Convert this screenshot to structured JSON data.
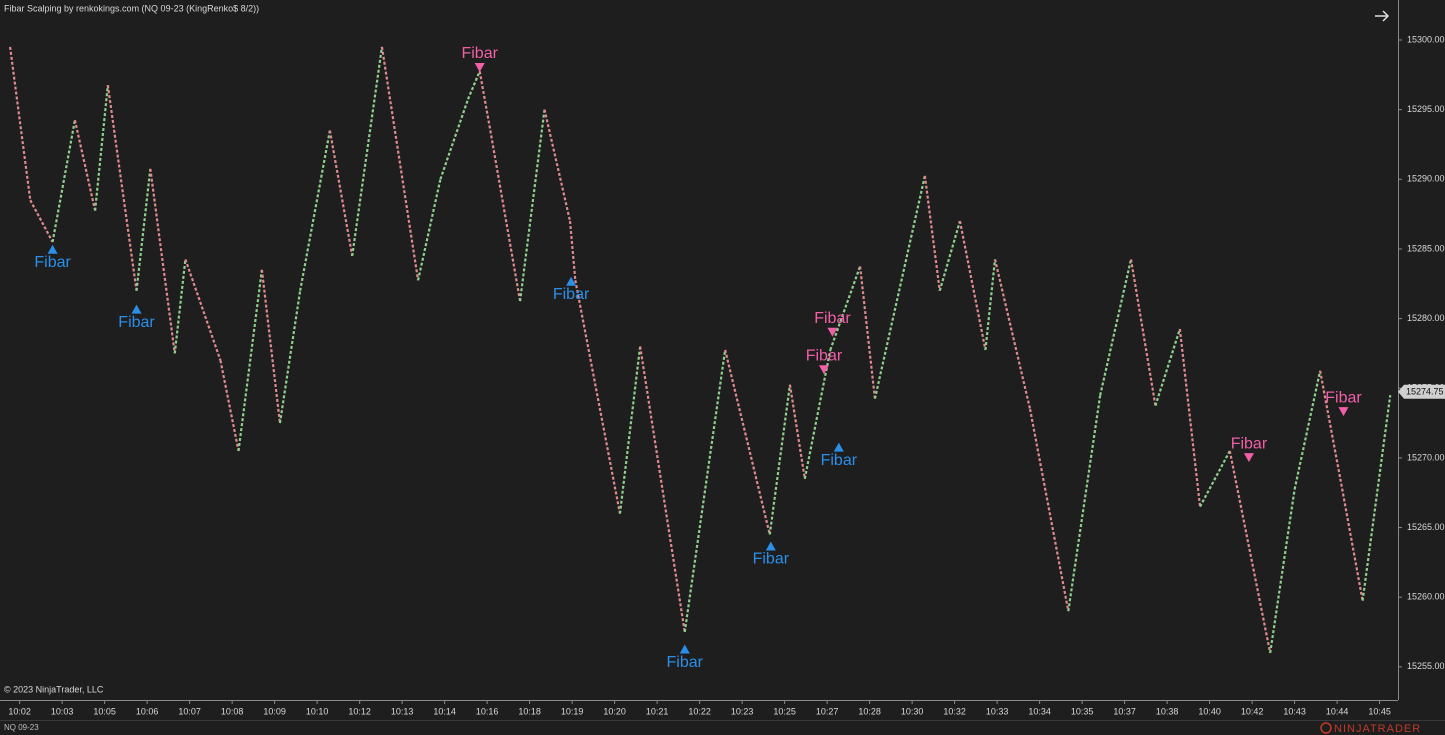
{
  "chart_data": {
    "type": "line",
    "title": "Fibar Scalping by renkokings.com (NQ 09-23 (KingRenko$ 8/2))",
    "copyright": "© 2023 NinjaTrader, LLC",
    "instrument": "NQ 09-23",
    "brand": "NINJATRADER",
    "last_price": 15274.75,
    "xlim": [
      -0.85,
      130.73
    ],
    "ylim": [
      15252.62,
      15302.87
    ],
    "up_color": "#8fcf8c",
    "down_color": "#e08a8f",
    "xticks": [
      {
        "value": 1,
        "label": "10:02"
      },
      {
        "value": 5,
        "label": "10:03"
      },
      {
        "value": 9,
        "label": "10:05"
      },
      {
        "value": 13,
        "label": "10:06"
      },
      {
        "value": 17,
        "label": "10:07"
      },
      {
        "value": 21,
        "label": "10:08"
      },
      {
        "value": 25,
        "label": "10:09"
      },
      {
        "value": 29,
        "label": "10:10"
      },
      {
        "value": 33,
        "label": "10:12"
      },
      {
        "value": 37,
        "label": "10:13"
      },
      {
        "value": 41,
        "label": "10:14"
      },
      {
        "value": 45,
        "label": "10:16"
      },
      {
        "value": 49,
        "label": "10:18"
      },
      {
        "value": 53,
        "label": "10:19"
      },
      {
        "value": 57,
        "label": "10:20"
      },
      {
        "value": 61,
        "label": "10:21"
      },
      {
        "value": 65,
        "label": "10:22"
      },
      {
        "value": 69,
        "label": "10:23"
      },
      {
        "value": 73,
        "label": "10:25"
      },
      {
        "value": 77,
        "label": "10:27"
      },
      {
        "value": 81,
        "label": "10:28"
      },
      {
        "value": 85,
        "label": "10:30"
      },
      {
        "value": 89,
        "label": "10:32"
      },
      {
        "value": 93,
        "label": "10:33"
      },
      {
        "value": 97,
        "label": "10:34"
      },
      {
        "value": 101,
        "label": "10:35"
      },
      {
        "value": 105,
        "label": "10:37"
      },
      {
        "value": 109,
        "label": "10:38"
      },
      {
        "value": 113,
        "label": "10:40"
      },
      {
        "value": 117,
        "label": "10:42"
      },
      {
        "value": 121,
        "label": "10:43"
      },
      {
        "value": 125,
        "label": "10:44"
      },
      {
        "value": 129,
        "label": "10:45"
      }
    ],
    "yticks": [
      {
        "value": 15255,
        "label": "15255.00"
      },
      {
        "value": 15260,
        "label": "15260.00"
      },
      {
        "value": 15265,
        "label": "15265.00"
      },
      {
        "value": 15270,
        "label": "15270.00"
      },
      {
        "value": 15275,
        "label": "15275.00"
      },
      {
        "value": 15280,
        "label": "15280.00"
      },
      {
        "value": 15285,
        "label": "15285.00"
      },
      {
        "value": 15290,
        "label": "15290.00"
      },
      {
        "value": 15295,
        "label": "15295.00"
      },
      {
        "value": 15300,
        "label": "15300.00"
      }
    ],
    "series": [
      {
        "name": "NQ 09-23",
        "x": [
          0.1,
          2.0,
          4.1,
          6.2,
          8.1,
          9.3,
          12.0,
          13.3,
          15.6,
          16.6,
          19.9,
          21.6,
          23.8,
          25.5,
          27.4,
          30.2,
          32.3,
          35.1,
          38.5,
          40.6,
          43.2,
          44.3,
          45.3,
          48.1,
          50.4,
          52.8,
          53.3,
          57.5,
          59.4,
          63.6,
          67.4,
          71.6,
          73.5,
          74.9,
          77.3,
          80.1,
          81.5,
          86.2,
          87.6,
          89.5,
          91.9,
          92.8,
          96.1,
          99.7,
          102.7,
          105.6,
          107.9,
          110.2,
          112.1,
          114.9,
          118.7,
          121.0,
          123.4,
          125.3,
          127.4,
          130.0
        ],
        "values": [
          15299.5,
          15288.5,
          15285.5,
          15294.25,
          15287.75,
          15296.75,
          15282,
          15290.75,
          15277.5,
          15284.25,
          15277,
          15270.5,
          15283.5,
          15272.5,
          15282,
          15293.5,
          15284.5,
          15299.5,
          15282.75,
          15290,
          15295.75,
          15297.75,
          15293.5,
          15281.25,
          15295,
          15287,
          15282.75,
          15266,
          15278,
          15257.5,
          15277.75,
          15264.5,
          15275.25,
          15268.5,
          15277.75,
          15283.75,
          15274.25,
          15290.25,
          15282,
          15287,
          15277.75,
          15284.25,
          15273.5,
          15259,
          15274.5,
          15284.25,
          15273.75,
          15279.25,
          15266.5,
          15270.5,
          15256,
          15267.75,
          15276.25,
          15268.5,
          15259.75,
          15274.5
        ]
      }
    ],
    "annotations": [
      {
        "text": "Fibar",
        "direction": "up",
        "color": "#2b8fe8",
        "x": 4.1,
        "y": 15285.3
      },
      {
        "text": "Fibar",
        "direction": "up",
        "color": "#2b8fe8",
        "x": 12.0,
        "y": 15281.0
      },
      {
        "text": "Fibar",
        "direction": "down",
        "color": "#f05fa8",
        "x": 44.3,
        "y": 15297.7
      },
      {
        "text": "Fibar",
        "direction": "up",
        "color": "#2b8fe8",
        "x": 52.9,
        "y": 15283.0
      },
      {
        "text": "Fibar",
        "direction": "up",
        "color": "#2b8fe8",
        "x": 63.6,
        "y": 15256.6
      },
      {
        "text": "Fibar",
        "direction": "up",
        "color": "#2b8fe8",
        "x": 71.7,
        "y": 15264.0
      },
      {
        "text": "Fibar",
        "direction": "down",
        "color": "#f05fa8",
        "x": 76.7,
        "y": 15276.0
      },
      {
        "text": "Fibar",
        "direction": "down",
        "color": "#f05fa8",
        "x": 77.5,
        "y": 15278.7
      },
      {
        "text": "Fibar",
        "direction": "up",
        "color": "#2b8fe8",
        "x": 78.1,
        "y": 15271.1
      },
      {
        "text": "Fibar",
        "direction": "down",
        "color": "#f05fa8",
        "x": 116.7,
        "y": 15269.7
      },
      {
        "text": "Fibar",
        "direction": "down",
        "color": "#f05fa8",
        "x": 125.6,
        "y": 15273.0
      }
    ]
  }
}
